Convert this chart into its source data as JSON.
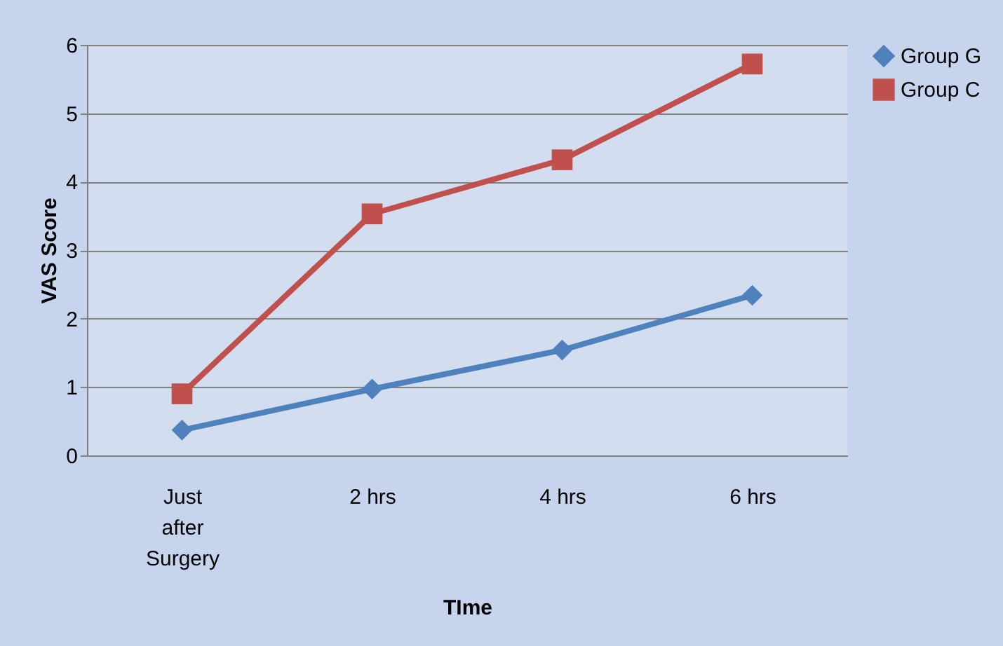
{
  "chart_data": {
    "type": "line",
    "xlabel": "TIme",
    "ylabel": "VAS Score",
    "categories": [
      "Just after Surgery",
      "2 hrs",
      "4 hrs",
      "6 hrs"
    ],
    "series": [
      {
        "name": "Group G",
        "color": "#4f81bd",
        "marker": "diamond",
        "values": [
          0.37,
          0.97,
          1.54,
          2.34
        ]
      },
      {
        "name": "Group C",
        "color": "#c0504d",
        "marker": "square",
        "values": [
          0.9,
          3.53,
          4.32,
          5.72
        ]
      }
    ],
    "ylim": [
      0,
      6
    ],
    "yticks": [
      0,
      1,
      2,
      3,
      4,
      5,
      6
    ],
    "grid": "y",
    "legend": "right",
    "line_style": "solid"
  }
}
